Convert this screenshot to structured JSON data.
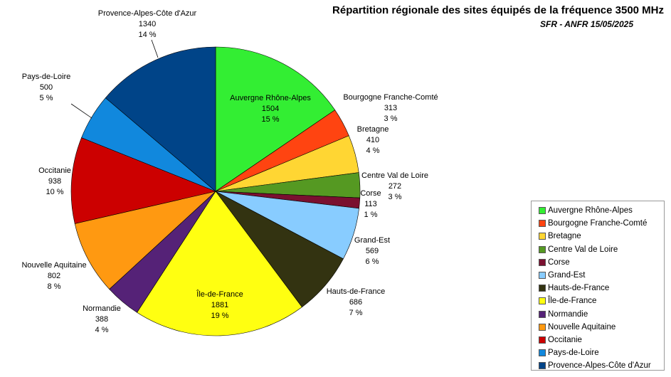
{
  "chart_data": {
    "type": "pie",
    "title": "Répartition régionale des sites équipés de la fréquence 3500 MHz",
    "subtitle": "SFR - ANFR 15/05/2025",
    "legend_position": "bottom-right",
    "slices": [
      {
        "label": "Auvergne Rhône-Alpes",
        "value": 1504,
        "percent": "15 %",
        "color": "#33ee33"
      },
      {
        "label": "Bourgogne Franche-Comté",
        "value": 313,
        "percent": "3 %",
        "color": "#ff4411"
      },
      {
        "label": "Bretagne",
        "value": 410,
        "percent": "4 %",
        "color": "#ffd633"
      },
      {
        "label": "Centre Val de Loire",
        "value": 272,
        "percent": "3 %",
        "color": "#559922"
      },
      {
        "label": "Corse",
        "value": 113,
        "percent": "1 %",
        "color": "#7a1030"
      },
      {
        "label": "Grand-Est",
        "value": 569,
        "percent": "6 %",
        "color": "#88ccff"
      },
      {
        "label": "Hauts-de-France",
        "value": 686,
        "percent": "7 %",
        "color": "#333311"
      },
      {
        "label": "Île-de-France",
        "value": 1881,
        "percent": "19 %",
        "color": "#ffff11"
      },
      {
        "label": "Normandie",
        "value": 388,
        "percent": "4 %",
        "color": "#552277"
      },
      {
        "label": "Nouvelle Aquitaine",
        "value": 802,
        "percent": "8 %",
        "color": "#ff9911"
      },
      {
        "label": "Occitanie",
        "value": 938,
        "percent": "10 %",
        "color": "#cc0000"
      },
      {
        "label": "Pays-de-Loire",
        "value": 500,
        "percent": "5 %",
        "color": "#1188dd"
      },
      {
        "label": "Provence-Alpes-Côte d'Azur",
        "value": 1340,
        "percent": "14 %",
        "color": "#004488"
      }
    ]
  }
}
